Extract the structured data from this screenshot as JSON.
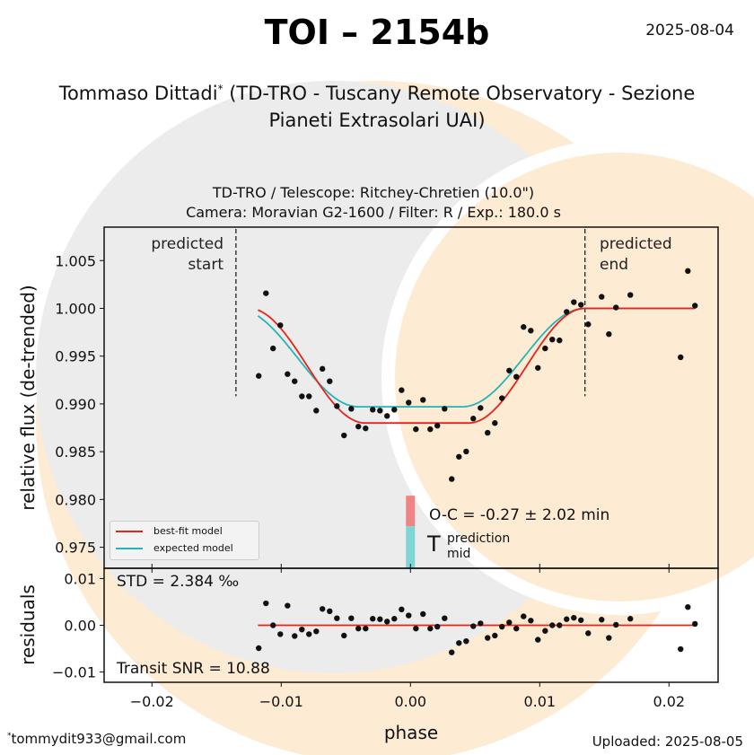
{
  "header": {
    "title": "TOI – 2154b",
    "date": "2025-08-04",
    "author_name": "Tommaso Dittadi",
    "author_mark": "*",
    "author_affiliation_line1": " (TD-TRO - Tuscany Remote Observatory - Sezione",
    "author_affiliation_line2": "Pianeti Extrasolari UAI)"
  },
  "footer": {
    "email_mark": "*",
    "email": "tommydit933@gmail.com",
    "uploaded": "Uploaded: 2025-08-05"
  },
  "colors": {
    "best_fit": "#e8231a",
    "expected": "#22b5b8",
    "oc_bar": "#f08484",
    "tmid_bar": "#7fd4d4",
    "plot_bg": "#eeeeee",
    "watermark_orange": "#fdebd3"
  },
  "chart_data": [
    {
      "type": "scatter",
      "panel": "light-curve",
      "title_line1": "TD-TRO / Telescope: Ritchey-Chretien (10.0\")",
      "title_line2": "Camera: Moravian G2-1600 / Filter: R / Exp.: 180.0 s",
      "xlabel": "phase",
      "ylabel": "relative flux (de-trended)",
      "xlim": [
        -0.0237,
        0.0238
      ],
      "ylim": [
        0.9728,
        1.0085
      ],
      "xticks": [
        "−0.02",
        "−0.01",
        "0.00",
        "0.01",
        "0.02"
      ],
      "xtick_values": [
        -0.02,
        -0.01,
        0.0,
        0.01,
        0.02
      ],
      "yticks": [
        "1.005",
        "1.000",
        "0.995",
        "0.990",
        "0.985",
        "0.980",
        "0.975"
      ],
      "ytick_values": [
        1.005,
        1.0,
        0.995,
        0.99,
        0.985,
        0.98,
        0.975
      ],
      "annotations": {
        "predicted_start_label": "predicted\nstart",
        "predicted_start_line1": "predicted",
        "predicted_start_line2": "start",
        "predicted_start_phase": -0.0135,
        "predicted_end_line1": "predicted",
        "predicted_end_line2": "end",
        "predicted_end_phase": 0.0135,
        "oc_text": "O-C = -0.27 ± 2.02 min",
        "tmid_main": "T",
        "tmid_sup": "prediction",
        "tmid_sub": "mid"
      },
      "legend": {
        "placement": "lower-left",
        "entries": [
          "best-fit model",
          "expected model"
        ]
      },
      "models": {
        "best_fit": {
          "name": "best-fit model",
          "baseline": 1.0,
          "depth": 0.012,
          "t1": -0.0125,
          "t2": -0.0035,
          "t3": 0.0045,
          "t4": 0.0135,
          "x_start": -0.0118,
          "x_end": 0.022
        },
        "expected": {
          "name": "expected model",
          "baseline": 1.0,
          "depth": 0.0103,
          "t1": -0.0135,
          "t2": -0.004,
          "t3": 0.004,
          "t4": 0.0135,
          "x_start": -0.0118,
          "x_end": 0.022
        }
      },
      "points": {
        "phase": [
          -0.01174,
          -0.01118,
          -0.01063,
          -0.01007,
          -0.00951,
          -0.00896,
          -0.0084,
          -0.00785,
          -0.00729,
          -0.00681,
          -0.00625,
          -0.00569,
          -0.00514,
          -0.00458,
          -0.00403,
          -0.00347,
          -0.00292,
          -0.00236,
          -0.00181,
          -0.00125,
          -0.00069,
          -0.00014,
          0.00042,
          0.00097,
          0.00153,
          0.00208,
          0.00264,
          0.00319,
          0.00375,
          0.00431,
          0.00486,
          0.00542,
          0.00597,
          0.00653,
          0.00708,
          0.00764,
          0.00819,
          0.00875,
          0.00931,
          0.00986,
          0.01042,
          0.01097,
          0.01153,
          0.01208,
          0.01264,
          0.01319,
          0.01375,
          0.01479,
          0.01535,
          0.0159,
          0.01701,
          0.0209,
          0.02146,
          0.02201
        ],
        "flux": [
          0.99293,
          1.00158,
          0.99581,
          0.99823,
          0.99312,
          0.99237,
          0.99079,
          0.99079,
          0.9893,
          0.99367,
          0.99237,
          0.98977,
          0.9867,
          0.98949,
          0.98763,
          0.98744,
          0.9894,
          0.9893,
          0.98874,
          0.9894,
          0.99144,
          0.99014,
          0.98735,
          0.99042,
          0.98735,
          0.98772,
          0.98949,
          0.98214,
          0.98447,
          0.98502,
          0.98847,
          0.98958,
          0.98698,
          0.988,
          0.9906,
          0.99349,
          0.99284,
          0.99805,
          0.99767,
          0.99377,
          0.99581,
          0.99674,
          0.99665,
          0.99963,
          1.00065,
          1.00037,
          0.99833,
          1.00121,
          0.9973,
          1.00009,
          1.0014,
          0.99488,
          1.00391,
          1.00028
        ]
      }
    },
    {
      "type": "scatter",
      "panel": "residuals",
      "ylabel": "residuals",
      "xlabel": "phase",
      "ylim": [
        -0.0122,
        0.0122
      ],
      "yticks": [
        "0.01",
        "0.00",
        "−0.01"
      ],
      "ytick_values": [
        0.01,
        0.0,
        -0.01
      ],
      "std_text": "STD = 2.384 ‰",
      "snr_text": "Transit SNR = 10.88",
      "zero_line": 0.0,
      "residuals": [
        -0.0049,
        0.0047,
        0.0,
        -0.0019,
        0.0042,
        -0.0023,
        -0.0009,
        -0.0019,
        -0.0013,
        0.0035,
        0.003,
        0.0015,
        -0.0022,
        0.0015,
        -0.0007,
        -0.0007,
        0.0014,
        0.0013,
        0.0008,
        0.0014,
        0.0034,
        0.0021,
        -0.0007,
        0.0024,
        -0.0007,
        -0.0003,
        0.0015,
        -0.0058,
        -0.0038,
        -0.0034,
        -0.0002,
        0.0004,
        -0.0027,
        -0.0022,
        -0.0003,
        0.0006,
        -0.0007,
        0.0019,
        0.001,
        -0.0031,
        -0.0012,
        0.0,
        0.0,
        0.0013,
        0.0016,
        0.0011,
        -0.0017,
        0.0012,
        -0.0027,
        0.0001,
        0.0014,
        -0.0051,
        0.0039,
        0.0003
      ]
    }
  ]
}
